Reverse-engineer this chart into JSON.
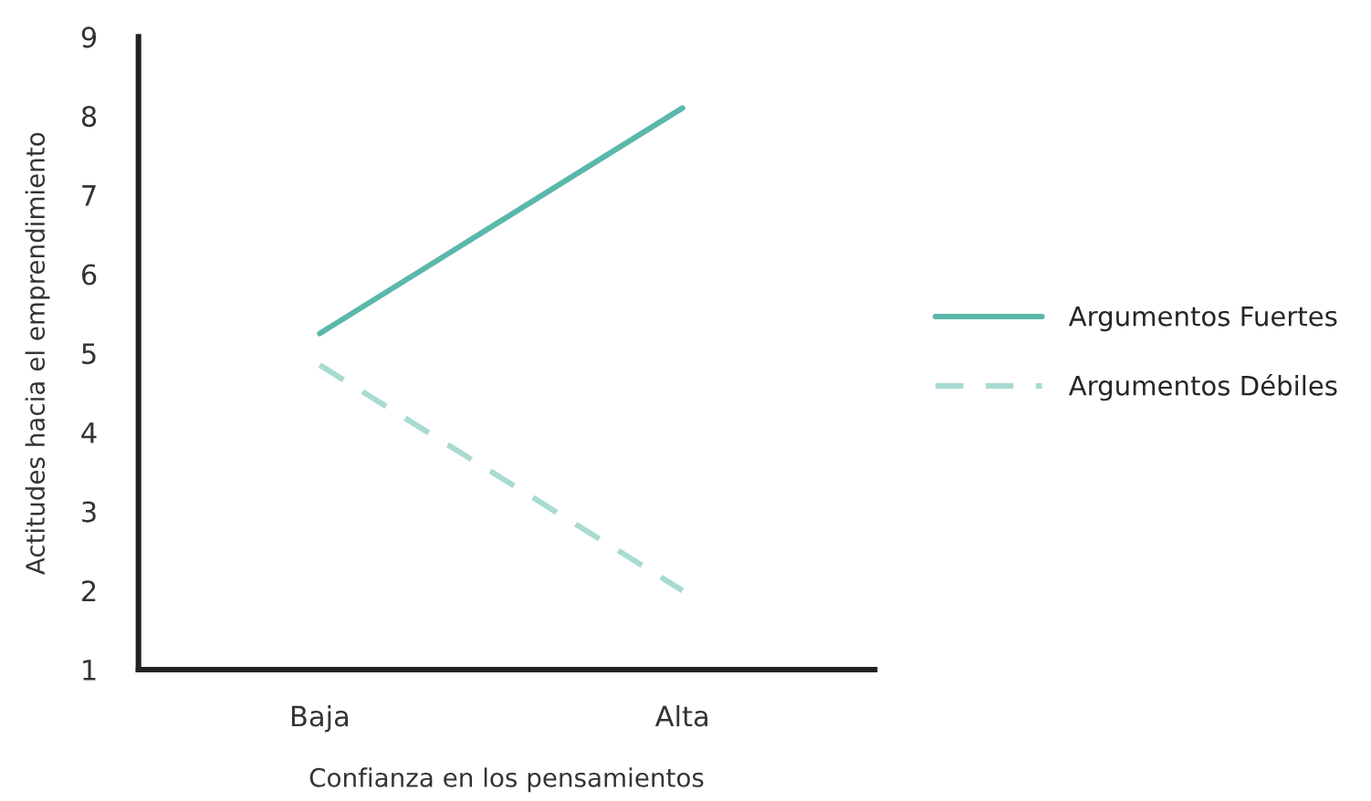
{
  "chart_data": {
    "type": "line",
    "xlabel": "Confianza en los pensamientos",
    "ylabel": "Actitudes hacia el emprendimiento",
    "categories": [
      "Baja",
      "Alta"
    ],
    "series": [
      {
        "name": "Argumentos Fuertes",
        "color": "#5bb8aa",
        "line_style": "solid",
        "values": [
          5.25,
          8.1
        ]
      },
      {
        "name": "Argumentos Débiles",
        "color": "#a8dbd2",
        "line_style": "dashed",
        "values": [
          4.85,
          2.0
        ]
      }
    ],
    "ylim": [
      1,
      9
    ],
    "yticks": [
      1,
      2,
      3,
      4,
      5,
      6,
      7,
      8,
      9
    ],
    "grid": false,
    "legend": "right",
    "marker": "none"
  }
}
